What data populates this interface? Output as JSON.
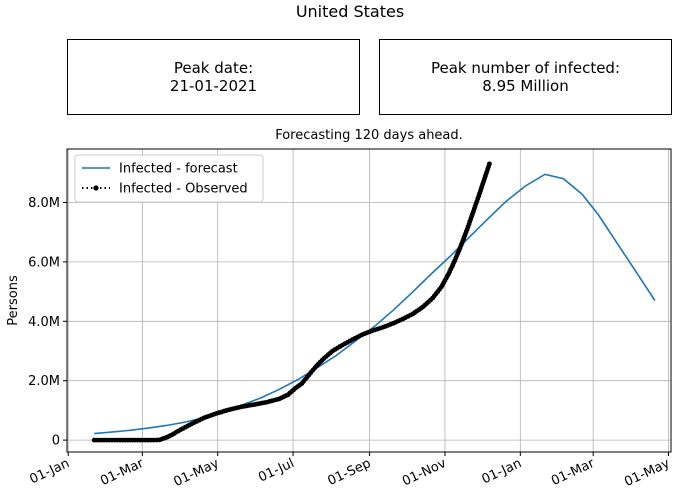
{
  "page": {
    "title": "United States",
    "peak_date_label": "Peak date:",
    "peak_date_value": "21-01-2021",
    "peak_infected_label": "Peak number of infected:",
    "peak_infected_value": "8.95 Million",
    "subtitle": "Forecasting 120 days ahead."
  },
  "chart_data": {
    "type": "line",
    "title": "Forecasting 120 days ahead.",
    "xlabel": "",
    "ylabel": "Persons",
    "x_is_date": true,
    "xlim": [
      "2019-12-31",
      "2021-05-03"
    ],
    "ylim": [
      -400000,
      9800000
    ],
    "x_ticks": [
      {
        "date": "2020-01-01",
        "label": "01-Jan"
      },
      {
        "date": "2020-03-01",
        "label": "01-Mar"
      },
      {
        "date": "2020-05-01",
        "label": "01-May"
      },
      {
        "date": "2020-07-01",
        "label": "01-Jul"
      },
      {
        "date": "2020-09-01",
        "label": "01-Sep"
      },
      {
        "date": "2020-11-01",
        "label": "01-Nov"
      },
      {
        "date": "2021-01-01",
        "label": "01-Jan"
      },
      {
        "date": "2021-03-01",
        "label": "01-Mar"
      },
      {
        "date": "2021-05-01",
        "label": "01-May"
      }
    ],
    "y_ticks": [
      {
        "value": 0,
        "label": "0"
      },
      {
        "value": 2000000,
        "label": "2.0M"
      },
      {
        "value": 4000000,
        "label": "4.0M"
      },
      {
        "value": 6000000,
        "label": "6.0M"
      },
      {
        "value": 8000000,
        "label": "8.0M"
      }
    ],
    "grid": true,
    "legend_position": "top-left",
    "series": [
      {
        "name": "Infected - forecast",
        "color": "#1f77b4",
        "style": "solid",
        "points": [
          [
            "2020-01-22",
            220000
          ],
          [
            "2020-02-05",
            270000
          ],
          [
            "2020-02-20",
            330000
          ],
          [
            "2020-03-05",
            400000
          ],
          [
            "2020-03-20",
            490000
          ],
          [
            "2020-04-05",
            610000
          ],
          [
            "2020-04-20",
            760000
          ],
          [
            "2020-05-05",
            950000
          ],
          [
            "2020-05-20",
            1170000
          ],
          [
            "2020-06-05",
            1420000
          ],
          [
            "2020-06-20",
            1710000
          ],
          [
            "2020-07-05",
            2040000
          ],
          [
            "2020-07-20",
            2420000
          ],
          [
            "2020-08-05",
            2850000
          ],
          [
            "2020-08-20",
            3320000
          ],
          [
            "2020-09-05",
            3830000
          ],
          [
            "2020-09-20",
            4370000
          ],
          [
            "2020-10-05",
            4950000
          ],
          [
            "2020-10-20",
            5560000
          ],
          [
            "2020-11-05",
            6180000
          ],
          [
            "2020-11-20",
            6800000
          ],
          [
            "2020-12-05",
            7420000
          ],
          [
            "2020-12-20",
            8020000
          ],
          [
            "2021-01-05",
            8550000
          ],
          [
            "2021-01-21",
            8950000
          ],
          [
            "2021-02-05",
            8800000
          ],
          [
            "2021-02-20",
            8280000
          ],
          [
            "2021-03-05",
            7600000
          ],
          [
            "2021-03-20",
            6650000
          ],
          [
            "2021-04-05",
            5650000
          ],
          [
            "2021-04-20",
            4700000
          ]
        ]
      },
      {
        "name": "Infected - Observed",
        "color": "#000000",
        "style": "dotted",
        "marker": "circle",
        "points": [
          [
            "2020-01-22",
            0
          ],
          [
            "2020-02-01",
            0
          ],
          [
            "2020-02-10",
            0
          ],
          [
            "2020-02-20",
            0
          ],
          [
            "2020-03-01",
            0
          ],
          [
            "2020-03-10",
            0
          ],
          [
            "2020-03-15",
            10000
          ],
          [
            "2020-03-20",
            80000
          ],
          [
            "2020-03-25",
            180000
          ],
          [
            "2020-04-01",
            350000
          ],
          [
            "2020-04-10",
            550000
          ],
          [
            "2020-04-20",
            750000
          ],
          [
            "2020-04-30",
            900000
          ],
          [
            "2020-05-10",
            1020000
          ],
          [
            "2020-05-20",
            1120000
          ],
          [
            "2020-05-31",
            1200000
          ],
          [
            "2020-06-10",
            1280000
          ],
          [
            "2020-06-20",
            1390000
          ],
          [
            "2020-06-27",
            1530000
          ],
          [
            "2020-07-03",
            1750000
          ],
          [
            "2020-07-08",
            1900000
          ],
          [
            "2020-07-14",
            2200000
          ],
          [
            "2020-07-20",
            2500000
          ],
          [
            "2020-07-26",
            2750000
          ],
          [
            "2020-08-02",
            3000000
          ],
          [
            "2020-08-10",
            3200000
          ],
          [
            "2020-08-18",
            3380000
          ],
          [
            "2020-08-26",
            3550000
          ],
          [
            "2020-09-03",
            3680000
          ],
          [
            "2020-09-12",
            3800000
          ],
          [
            "2020-09-20",
            3930000
          ],
          [
            "2020-09-28",
            4080000
          ],
          [
            "2020-10-06",
            4250000
          ],
          [
            "2020-10-14",
            4480000
          ],
          [
            "2020-10-22",
            4780000
          ],
          [
            "2020-10-29",
            5150000
          ],
          [
            "2020-11-04",
            5600000
          ],
          [
            "2020-11-09",
            6050000
          ],
          [
            "2020-11-14",
            6550000
          ],
          [
            "2020-11-19",
            7100000
          ],
          [
            "2020-11-24",
            7700000
          ],
          [
            "2020-11-29",
            8300000
          ],
          [
            "2020-12-03",
            8800000
          ],
          [
            "2020-12-07",
            9300000
          ]
        ]
      }
    ]
  }
}
